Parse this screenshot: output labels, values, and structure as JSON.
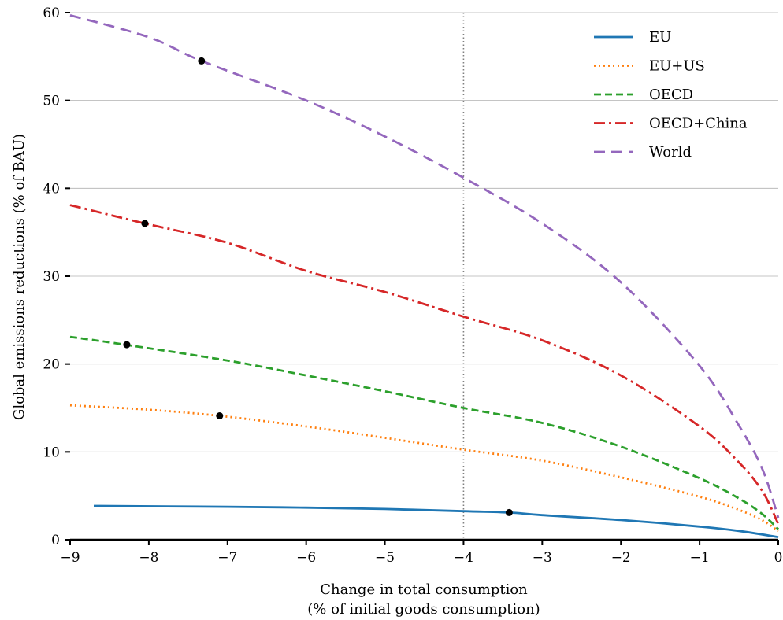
{
  "chart_data": {
    "type": "line",
    "title": "",
    "xlabel_line1": "Change in total consumption",
    "xlabel_line2": "(% of initial goods consumption)",
    "ylabel": "Global emissions reductions (% of BAU)",
    "xlim": [
      -9,
      0
    ],
    "ylim": [
      0,
      60
    ],
    "xticks": [
      -9,
      -8,
      -7,
      -6,
      -5,
      -4,
      -3,
      -2,
      -1,
      0
    ],
    "xtick_labels": [
      "−9",
      "−8",
      "−7",
      "−6",
      "−5",
      "−4",
      "−3",
      "−2",
      "−1",
      "0"
    ],
    "yticks": [
      0,
      10,
      20,
      30,
      40,
      50,
      60
    ],
    "ytick_labels": [
      "0",
      "10",
      "20",
      "30",
      "40",
      "50",
      "60"
    ],
    "grid": "horizontal",
    "legend_position": "top-right",
    "vertical_reference_line": {
      "x": -4,
      "style": "dotted",
      "color": "#808080"
    },
    "series": [
      {
        "name": "EU",
        "color": "#1f77b4",
        "dash": "solid",
        "points": [
          [
            -8.7,
            3.85
          ],
          [
            -7,
            3.75
          ],
          [
            -6,
            3.65
          ],
          [
            -5,
            3.5
          ],
          [
            -4,
            3.25
          ],
          [
            -3.42,
            3.1
          ],
          [
            -3,
            2.8
          ],
          [
            -2,
            2.25
          ],
          [
            -1,
            1.5
          ],
          [
            -0.5,
            1.0
          ],
          [
            0,
            0.3
          ]
        ],
        "marker": [
          -3.42,
          3.1
        ]
      },
      {
        "name": "EU+US",
        "color": "#ff7f0e",
        "dash": "dotted",
        "points": [
          [
            -9,
            15.3
          ],
          [
            -8,
            14.8
          ],
          [
            -7.1,
            14.1
          ],
          [
            -6,
            12.9
          ],
          [
            -5,
            11.6
          ],
          [
            -4,
            10.25
          ],
          [
            -3,
            9.0
          ],
          [
            -2,
            7.1
          ],
          [
            -1,
            4.9
          ],
          [
            -0.5,
            3.4
          ],
          [
            -0.2,
            2.2
          ],
          [
            0,
            1.0
          ]
        ],
        "marker": [
          -7.1,
          14.1
        ]
      },
      {
        "name": "OECD",
        "color": "#2ca02c",
        "dash": "dashed",
        "points": [
          [
            -9,
            23.1
          ],
          [
            -8.3,
            22.2
          ],
          [
            -7,
            20.4
          ],
          [
            -6,
            18.7
          ],
          [
            -5,
            16.9
          ],
          [
            -4,
            15.0
          ],
          [
            -3,
            13.3
          ],
          [
            -2,
            10.6
          ],
          [
            -1,
            7.0
          ],
          [
            -0.5,
            4.7
          ],
          [
            -0.2,
            2.9
          ],
          [
            0,
            1.2
          ]
        ],
        "marker": [
          -8.28,
          22.2
        ]
      },
      {
        "name": "OECD+China",
        "color": "#d62728",
        "dash": "dashdot",
        "points": [
          [
            -9,
            38.1
          ],
          [
            -8.05,
            36.0
          ],
          [
            -7,
            33.8
          ],
          [
            -6,
            30.6
          ],
          [
            -5,
            28.2
          ],
          [
            -4,
            25.4
          ],
          [
            -3,
            22.7
          ],
          [
            -2,
            18.7
          ],
          [
            -1,
            12.9
          ],
          [
            -0.5,
            8.8
          ],
          [
            -0.2,
            5.5
          ],
          [
            0,
            1.8
          ]
        ],
        "marker": [
          -8.05,
          36.0
        ]
      },
      {
        "name": "World",
        "color": "#9467bd",
        "dash": "longdash",
        "points": [
          [
            -9,
            59.7
          ],
          [
            -8,
            57.2
          ],
          [
            -7.33,
            54.5
          ],
          [
            -6,
            50.0
          ],
          [
            -5,
            45.9
          ],
          [
            -4,
            41.2
          ],
          [
            -3,
            36.0
          ],
          [
            -2,
            29.3
          ],
          [
            -1,
            19.8
          ],
          [
            -0.5,
            13.0
          ],
          [
            -0.2,
            8.0
          ],
          [
            0,
            2.5
          ]
        ],
        "marker": [
          -7.33,
          54.5
        ]
      }
    ]
  }
}
